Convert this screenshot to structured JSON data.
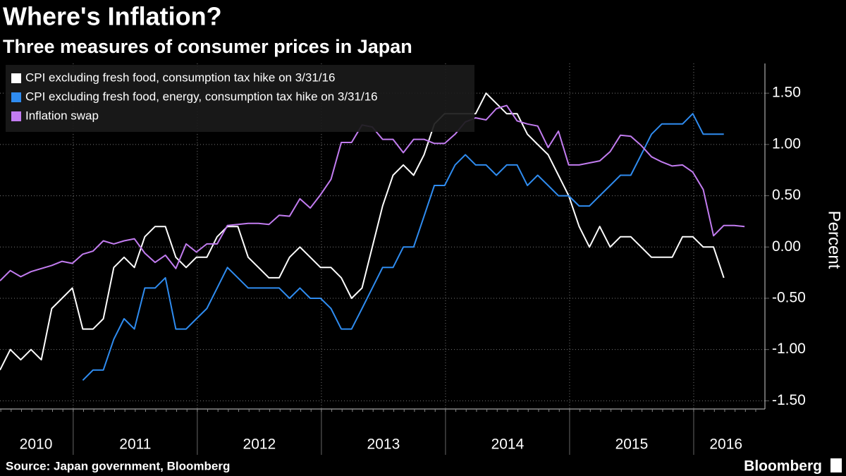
{
  "chart_data": {
    "type": "line",
    "title": "Where's Inflation?",
    "subtitle": "Three measures of consumer prices in Japan",
    "y_label": "Percent",
    "source": "Source: Japan government, Bloomberg",
    "brand": "Bloomberg",
    "x": [
      2010.41,
      2010.493,
      2010.577,
      2010.66,
      2010.743,
      2010.827,
      2010.91,
      2010.993,
      2011.077,
      2011.16,
      2011.243,
      2011.327,
      2011.41,
      2011.493,
      2011.577,
      2011.66,
      2011.743,
      2011.827,
      2011.91,
      2011.993,
      2012.077,
      2012.16,
      2012.243,
      2012.327,
      2012.41,
      2012.493,
      2012.577,
      2012.66,
      2012.743,
      2012.827,
      2012.91,
      2012.993,
      2013.077,
      2013.16,
      2013.243,
      2013.327,
      2013.41,
      2013.493,
      2013.577,
      2013.66,
      2013.743,
      2013.827,
      2013.91,
      2013.993,
      2014.077,
      2014.16,
      2014.243,
      2014.327,
      2014.41,
      2014.493,
      2014.577,
      2014.66,
      2014.743,
      2014.827,
      2014.91,
      2014.993,
      2015.077,
      2015.16,
      2015.243,
      2015.327,
      2015.41,
      2015.493,
      2015.577,
      2015.66,
      2015.743,
      2015.827,
      2015.91,
      2015.993,
      2016.077,
      2016.16,
      2016.243,
      2016.327,
      2016.41
    ],
    "series": [
      {
        "name": "CPI excluding fresh food, consumption tax hike on 3/31/16",
        "color": "#ffffff",
        "values": [
          -1.2,
          -1.0,
          -1.1,
          -1.0,
          -1.1,
          -0.6,
          -0.5,
          -0.4,
          -0.8,
          -0.8,
          -0.7,
          -0.2,
          -0.1,
          -0.2,
          0.1,
          0.2,
          0.2,
          -0.1,
          -0.2,
          -0.1,
          -0.1,
          0.1,
          0.2,
          0.2,
          -0.1,
          -0.2,
          -0.3,
          -0.3,
          -0.1,
          0.0,
          -0.1,
          -0.2,
          -0.2,
          -0.3,
          -0.5,
          -0.4,
          0.0,
          0.4,
          0.7,
          0.8,
          0.7,
          0.9,
          1.2,
          1.3,
          1.3,
          1.3,
          1.3,
          1.5,
          1.4,
          1.3,
          1.3,
          1.1,
          1.0,
          0.9,
          0.7,
          0.5,
          0.2,
          0.0,
          0.2,
          0.0,
          0.1,
          0.1,
          0.0,
          -0.1,
          -0.1,
          -0.1,
          0.1,
          0.1,
          0.0,
          0.0,
          -0.3,
          null,
          null
        ]
      },
      {
        "name": "CPI excluding fresh food, energy, consumption tax hike on 3/31/16",
        "color": "#2f8cf0",
        "values": [
          null,
          null,
          null,
          null,
          null,
          null,
          null,
          null,
          -1.3,
          -1.2,
          -1.2,
          -0.9,
          -0.7,
          -0.8,
          -0.4,
          -0.4,
          -0.3,
          -0.8,
          -0.8,
          -0.7,
          -0.6,
          -0.4,
          -0.2,
          -0.3,
          -0.4,
          -0.4,
          -0.4,
          -0.4,
          -0.5,
          -0.4,
          -0.5,
          -0.5,
          -0.6,
          -0.8,
          -0.8,
          -0.6,
          -0.4,
          -0.2,
          -0.2,
          0.0,
          0.0,
          0.3,
          0.6,
          0.6,
          0.8,
          0.9,
          0.8,
          0.8,
          0.7,
          0.8,
          0.8,
          0.6,
          0.7,
          0.6,
          0.5,
          0.5,
          0.4,
          0.4,
          0.5,
          0.6,
          0.7,
          0.7,
          0.9,
          1.1,
          1.2,
          1.2,
          1.2,
          1.3,
          1.1,
          1.1,
          1.1,
          null,
          null
        ]
      },
      {
        "name": "Inflation swap",
        "color": "#c27cf0",
        "values": [
          -0.33,
          -0.23,
          -0.29,
          -0.24,
          -0.21,
          -0.18,
          -0.14,
          -0.16,
          -0.07,
          -0.04,
          0.06,
          0.03,
          0.06,
          0.08,
          -0.06,
          -0.15,
          -0.08,
          -0.21,
          0.03,
          -0.05,
          0.03,
          0.03,
          0.21,
          0.22,
          0.23,
          0.23,
          0.22,
          0.31,
          0.3,
          0.47,
          0.38,
          0.51,
          0.66,
          1.02,
          1.02,
          1.19,
          1.17,
          1.05,
          1.05,
          0.92,
          1.05,
          1.05,
          1.01,
          1.01,
          1.1,
          1.22,
          1.26,
          1.24,
          1.35,
          1.38,
          1.23,
          1.2,
          1.18,
          0.97,
          1.13,
          0.8,
          0.8,
          0.82,
          0.84,
          0.93,
          1.09,
          1.08,
          0.99,
          0.88,
          0.83,
          0.79,
          0.8,
          0.73,
          0.56,
          0.11,
          0.21,
          0.21,
          0.2
        ]
      }
    ],
    "xlim": [
      2010.41,
      2016.574
    ],
    "xticks": [
      {
        "value": 2010.7,
        "label": "2010"
      },
      {
        "value": 2011.5,
        "label": "2011"
      },
      {
        "value": 2012.5,
        "label": "2012"
      },
      {
        "value": 2013.5,
        "label": "2013"
      },
      {
        "value": 2014.5,
        "label": "2014"
      },
      {
        "value": 2015.5,
        "label": "2015"
      },
      {
        "value": 2016.26,
        "label": "2016"
      }
    ],
    "xgrid": [
      2011,
      2012,
      2013,
      2014,
      2015,
      2016
    ],
    "ylim": [
      -1.58,
      1.79
    ],
    "yticks": [
      {
        "value": 1.5,
        "label": "1.50"
      },
      {
        "value": 1.0,
        "label": "1.00"
      },
      {
        "value": 0.5,
        "label": "0.50"
      },
      {
        "value": 0,
        "label": "0.00"
      },
      {
        "value": -0.5,
        "label": "-0.50"
      },
      {
        "value": -1.0,
        "label": "-1.00"
      },
      {
        "value": -1.5,
        "label": "-1.50"
      }
    ],
    "grid": true,
    "legend": "top-left"
  }
}
